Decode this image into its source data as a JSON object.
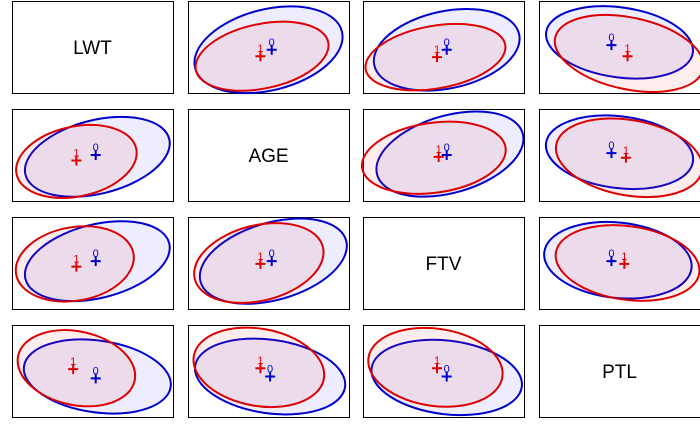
{
  "chart_data": {
    "type": "scatter",
    "subtype": "pairwise-covariance-ellipses",
    "variables": [
      "LWT",
      "AGE",
      "FTV",
      "PTL"
    ],
    "groups": [
      {
        "name": "0",
        "color": "#0000CC",
        "fill": "rgba(60,60,230,0.09)"
      },
      {
        "name": "1",
        "color": "#DD0000",
        "fill": "rgba(230,60,60,0.09)"
      }
    ],
    "panels": [
      {
        "row": 0,
        "col": 1,
        "x": "AGE",
        "y": "LWT",
        "ellipses": {
          "0": {
            "cx": 0.5,
            "cy": 0.53,
            "rx": 0.47,
            "ry": 0.44,
            "rot": -14
          },
          "1": {
            "cx": 0.46,
            "cy": 0.6,
            "rx": 0.42,
            "ry": 0.35,
            "rot": -12
          }
        },
        "centers": {
          "0": [
            0.52,
            0.53
          ],
          "1": [
            0.45,
            0.6
          ]
        }
      },
      {
        "row": 0,
        "col": 2,
        "x": "FTV",
        "y": "LWT",
        "ellipses": {
          "0": {
            "cx": 0.52,
            "cy": 0.53,
            "rx": 0.46,
            "ry": 0.42,
            "rot": -12
          },
          "1": {
            "cx": 0.45,
            "cy": 0.61,
            "rx": 0.44,
            "ry": 0.34,
            "rot": -10
          }
        },
        "centers": {
          "0": [
            0.52,
            0.53
          ],
          "1": [
            0.46,
            0.61
          ]
        }
      },
      {
        "row": 0,
        "col": 3,
        "x": "PTL",
        "y": "LWT",
        "ellipses": {
          "0": {
            "cx": 0.5,
            "cy": 0.45,
            "rx": 0.46,
            "ry": 0.38,
            "rot": 8
          },
          "1": {
            "cx": 0.56,
            "cy": 0.57,
            "rx": 0.47,
            "ry": 0.39,
            "rot": 12
          }
        },
        "centers": {
          "0": [
            0.45,
            0.48
          ],
          "1": [
            0.55,
            0.6
          ]
        }
      },
      {
        "row": 1,
        "col": 0,
        "x": "LWT",
        "y": "AGE",
        "ellipses": {
          "0": {
            "cx": 0.53,
            "cy": 0.52,
            "rx": 0.46,
            "ry": 0.4,
            "rot": -14
          },
          "1": {
            "cx": 0.4,
            "cy": 0.57,
            "rx": 0.38,
            "ry": 0.38,
            "rot": -12
          }
        },
        "centers": {
          "0": [
            0.52,
            0.5
          ],
          "1": [
            0.4,
            0.56
          ]
        }
      },
      {
        "row": 1,
        "col": 2,
        "x": "FTV",
        "y": "AGE",
        "ellipses": {
          "0": {
            "cx": 0.54,
            "cy": 0.49,
            "rx": 0.47,
            "ry": 0.42,
            "rot": -16
          },
          "1": {
            "cx": 0.44,
            "cy": 0.53,
            "rx": 0.45,
            "ry": 0.38,
            "rot": -8
          }
        },
        "centers": {
          "0": [
            0.52,
            0.5
          ],
          "1": [
            0.47,
            0.52
          ]
        }
      },
      {
        "row": 1,
        "col": 3,
        "x": "PTL",
        "y": "AGE",
        "ellipses": {
          "0": {
            "cx": 0.5,
            "cy": 0.47,
            "rx": 0.46,
            "ry": 0.39,
            "rot": 7
          },
          "1": {
            "cx": 0.56,
            "cy": 0.53,
            "rx": 0.46,
            "ry": 0.41,
            "rot": 10
          }
        },
        "centers": {
          "0": [
            0.45,
            0.48
          ],
          "1": [
            0.54,
            0.53
          ]
        }
      },
      {
        "row": 2,
        "col": 0,
        "x": "LWT",
        "y": "FTV",
        "ellipses": {
          "0": {
            "cx": 0.53,
            "cy": 0.48,
            "rx": 0.46,
            "ry": 0.4,
            "rot": -14
          },
          "1": {
            "cx": 0.39,
            "cy": 0.51,
            "rx": 0.37,
            "ry": 0.4,
            "rot": -10
          }
        },
        "centers": {
          "0": [
            0.52,
            0.48
          ],
          "1": [
            0.4,
            0.54
          ]
        }
      },
      {
        "row": 2,
        "col": 1,
        "x": "AGE",
        "y": "FTV",
        "ellipses": {
          "0": {
            "cx": 0.53,
            "cy": 0.48,
            "rx": 0.47,
            "ry": 0.42,
            "rot": -16
          },
          "1": {
            "cx": 0.44,
            "cy": 0.5,
            "rx": 0.41,
            "ry": 0.41,
            "rot": -14
          }
        },
        "centers": {
          "0": [
            0.52,
            0.48
          ],
          "1": [
            0.45,
            0.51
          ]
        }
      },
      {
        "row": 2,
        "col": 3,
        "x": "PTL",
        "y": "FTV",
        "ellipses": {
          "0": {
            "cx": 0.49,
            "cy": 0.47,
            "rx": 0.46,
            "ry": 0.41,
            "rot": 6
          },
          "1": {
            "cx": 0.55,
            "cy": 0.5,
            "rx": 0.45,
            "ry": 0.4,
            "rot": 8
          }
        },
        "centers": {
          "0": [
            0.45,
            0.48
          ],
          "1": [
            0.53,
            0.51
          ]
        }
      },
      {
        "row": 3,
        "col": 0,
        "x": "LWT",
        "y": "PTL",
        "ellipses": {
          "0": {
            "cx": 0.53,
            "cy": 0.56,
            "rx": 0.46,
            "ry": 0.39,
            "rot": 8
          },
          "1": {
            "cx": 0.4,
            "cy": 0.47,
            "rx": 0.37,
            "ry": 0.4,
            "rot": 12
          }
        },
        "centers": {
          "0": [
            0.52,
            0.58
          ],
          "1": [
            0.38,
            0.48
          ]
        }
      },
      {
        "row": 3,
        "col": 1,
        "x": "AGE",
        "y": "PTL",
        "ellipses": {
          "0": {
            "cx": 0.51,
            "cy": 0.56,
            "rx": 0.47,
            "ry": 0.4,
            "rot": 8
          },
          "1": {
            "cx": 0.44,
            "cy": 0.46,
            "rx": 0.41,
            "ry": 0.42,
            "rot": 10
          }
        },
        "centers": {
          "0": [
            0.51,
            0.56
          ],
          "1": [
            0.45,
            0.47
          ]
        }
      },
      {
        "row": 3,
        "col": 2,
        "x": "FTV",
        "y": "PTL",
        "ellipses": {
          "0": {
            "cx": 0.52,
            "cy": 0.57,
            "rx": 0.47,
            "ry": 0.4,
            "rot": 7
          },
          "1": {
            "cx": 0.45,
            "cy": 0.46,
            "rx": 0.42,
            "ry": 0.42,
            "rot": 8
          }
        },
        "centers": {
          "0": [
            0.52,
            0.56
          ],
          "1": [
            0.46,
            0.47
          ]
        }
      }
    ],
    "grid": false,
    "legend": "none"
  }
}
